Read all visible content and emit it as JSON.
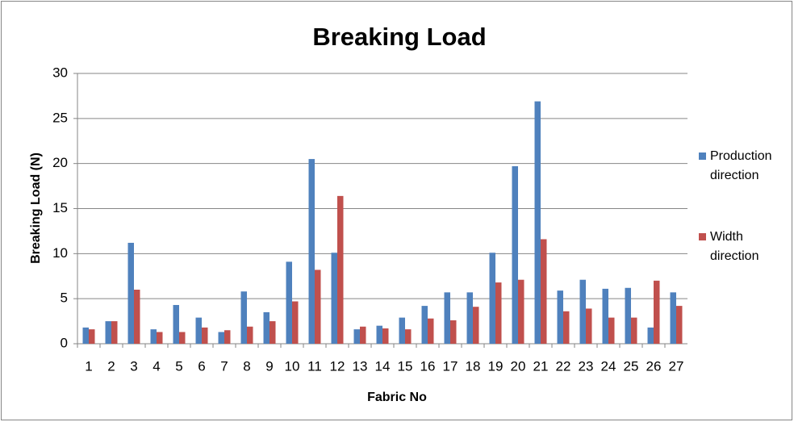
{
  "chart_data": {
    "type": "bar",
    "title": "Breaking Load",
    "x_label": "Fabric No",
    "y_label": "Breaking Load (N)",
    "categories": [
      "1",
      "2",
      "3",
      "4",
      "5",
      "6",
      "7",
      "8",
      "9",
      "10",
      "11",
      "12",
      "13",
      "14",
      "15",
      "16",
      "17",
      "18",
      "19",
      "20",
      "21",
      "22",
      "23",
      "24",
      "25",
      "26",
      "27"
    ],
    "series": [
      {
        "name": "Production direction",
        "color": "#4f81bd",
        "values": [
          1.8,
          2.5,
          11.2,
          1.6,
          4.3,
          2.9,
          1.3,
          5.8,
          3.5,
          9.1,
          20.5,
          10.1,
          1.6,
          2.0,
          2.9,
          4.2,
          5.7,
          5.7,
          10.1,
          19.7,
          26.9,
          5.9,
          7.1,
          6.1,
          6.2,
          1.8,
          5.7
        ]
      },
      {
        "name": "Width direction",
        "color": "#c0504d",
        "values": [
          1.6,
          2.5,
          6.0,
          1.3,
          1.3,
          1.8,
          1.5,
          1.9,
          2.5,
          4.7,
          8.2,
          16.4,
          1.9,
          1.7,
          1.6,
          2.8,
          2.6,
          4.1,
          6.8,
          7.1,
          11.6,
          3.6,
          3.9,
          2.9,
          2.9,
          7.0,
          4.2
        ]
      }
    ],
    "ylim": [
      0,
      30
    ],
    "yticks": [
      0,
      5,
      10,
      15,
      20,
      25,
      30
    ],
    "grid": true,
    "legend": "right"
  }
}
